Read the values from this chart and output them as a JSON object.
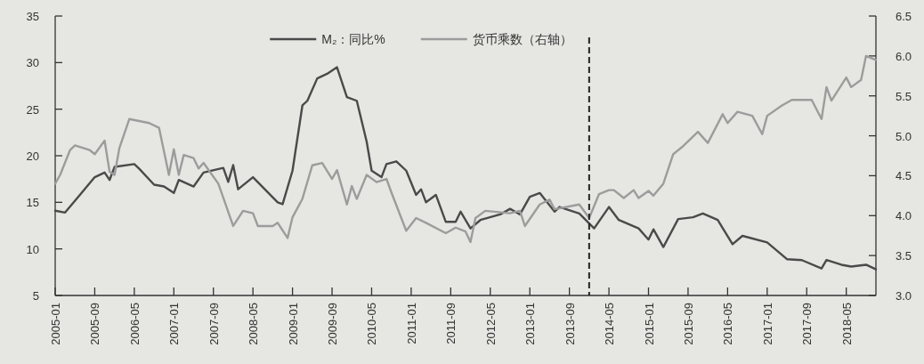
{
  "chart_data": {
    "type": "line",
    "xlim": [
      "2005-01",
      "2018-11"
    ],
    "xticks": [
      "2005-01",
      "2005-09",
      "2006-05",
      "2007-01",
      "2007-09",
      "2008-05",
      "2009-01",
      "2009-09",
      "2010-05",
      "2011-01",
      "2011-09",
      "2012-05",
      "2013-01",
      "2013-09",
      "2014-05",
      "2015-01",
      "2015-09",
      "2016-05",
      "2017-01",
      "2017-09",
      "2018-05"
    ],
    "ylim": [
      5,
      35
    ],
    "yticks": [
      5,
      10,
      15,
      20,
      25,
      30,
      35
    ],
    "y2lim": [
      3,
      6.5
    ],
    "y2ticks": [
      {
        "value": 3,
        "label": "3.0"
      },
      3.5,
      {
        "value": 4,
        "label": "4.0"
      },
      4.5,
      {
        "value": 5,
        "label": "5.0"
      },
      5.5,
      {
        "value": 6,
        "label": "6.0"
      },
      6.5
    ],
    "legend": "top",
    "grid": false,
    "ref_lines": [
      {
        "axis": "x",
        "value": "2014-01",
        "color": "#222222",
        "line_style": "dashed"
      }
    ],
    "series": [
      {
        "name": "M₂：同比%",
        "color": "#4a4a4a",
        "x": [
          "2005-01",
          "2005-03",
          "2005-06",
          "2005-09",
          "2005-11",
          "2005-12",
          "2006-01",
          "2006-05",
          "2006-06",
          "2006-09",
          "2006-11",
          "2007-01",
          "2007-02",
          "2007-05",
          "2007-07",
          "2007-11",
          "2007-12",
          "2008-01",
          "2008-02",
          "2008-05",
          "2008-10",
          "2008-11",
          "2009-01",
          "2009-03",
          "2009-04",
          "2009-06",
          "2009-08",
          "2009-10",
          "2009-12",
          "2010-02",
          "2010-04",
          "2010-05",
          "2010-07",
          "2010-08",
          "2010-10",
          "2010-12",
          "2011-02",
          "2011-03",
          "2011-04",
          "2011-06",
          "2011-08",
          "2011-10",
          "2011-11",
          "2012-01",
          "2012-03",
          "2012-07",
          "2012-09",
          "2012-11",
          "2013-01",
          "2013-03",
          "2013-06",
          "2013-07",
          "2013-11",
          "2014-02",
          "2014-05",
          "2014-07",
          "2014-11",
          "2015-01",
          "2015-02",
          "2015-04",
          "2015-07",
          "2015-10",
          "2015-12",
          "2016-03",
          "2016-06",
          "2016-08",
          "2017-01",
          "2017-05",
          "2017-08",
          "2017-12",
          "2018-01",
          "2018-04",
          "2018-06",
          "2018-09",
          "2018-11"
        ],
        "values": [
          14.1,
          13.9,
          15.8,
          17.7,
          18.2,
          17.4,
          18.8,
          19.1,
          18.6,
          16.9,
          16.7,
          16.0,
          17.4,
          16.7,
          18.2,
          18.7,
          17.2,
          19.0,
          16.4,
          17.7,
          15.0,
          14.8,
          18.4,
          25.4,
          25.9,
          28.3,
          28.8,
          29.5,
          26.3,
          25.9,
          21.5,
          18.4,
          17.7,
          19.1,
          19.4,
          18.4,
          15.8,
          16.4,
          15.0,
          15.8,
          12.9,
          12.9,
          14.0,
          12.2,
          13.1,
          13.7,
          14.3,
          13.7,
          15.6,
          16.0,
          14.0,
          14.5,
          13.8,
          12.2,
          14.5,
          13.1,
          12.2,
          11.0,
          12.1,
          10.2,
          13.2,
          13.4,
          13.8,
          13.1,
          10.5,
          11.4,
          10.7,
          8.9,
          8.8,
          7.9,
          8.8,
          8.3,
          8.1,
          8.3,
          7.8
        ]
      },
      {
        "name": "货币乘数（右轴）",
        "color": "#9c9c9c",
        "axis": "y2",
        "x": [
          "2005-01",
          "2005-02",
          "2005-04",
          "2005-05",
          "2005-08",
          "2005-09",
          "2005-11",
          "2005-12",
          "2006-01",
          "2006-02",
          "2006-04",
          "2006-08",
          "2006-10",
          "2006-12",
          "2007-01",
          "2007-02",
          "2007-03",
          "2007-05",
          "2007-06",
          "2007-07",
          "2007-10",
          "2008-01",
          "2008-03",
          "2008-05",
          "2008-06",
          "2008-09",
          "2008-10",
          "2008-12",
          "2009-01",
          "2009-03",
          "2009-05",
          "2009-07",
          "2009-09",
          "2009-10",
          "2009-12",
          "2010-01",
          "2010-02",
          "2010-04",
          "2010-06",
          "2010-08",
          "2010-09",
          "2010-12",
          "2011-02",
          "2011-04",
          "2011-08",
          "2011-10",
          "2011-12",
          "2012-01",
          "2012-02",
          "2012-04",
          "2012-09",
          "2012-11",
          "2012-12",
          "2013-03",
          "2013-05",
          "2013-06",
          "2013-11",
          "2014-01",
          "2014-03",
          "2014-05",
          "2014-06",
          "2014-08",
          "2014-10",
          "2014-11",
          "2015-01",
          "2015-02",
          "2015-04",
          "2015-06",
          "2015-08",
          "2015-11",
          "2016-01",
          "2016-04",
          "2016-05",
          "2016-07",
          "2016-10",
          "2016-12",
          "2017-01",
          "2017-04",
          "2017-06",
          "2017-10",
          "2017-12",
          "2018-01",
          "2018-02",
          "2018-05",
          "2018-06",
          "2018-08",
          "2018-09",
          "2018-11"
        ],
        "values": [
          4.4,
          4.51,
          4.82,
          4.88,
          4.82,
          4.77,
          4.94,
          4.55,
          4.51,
          4.85,
          5.21,
          5.16,
          5.1,
          4.51,
          4.83,
          4.51,
          4.76,
          4.72,
          4.59,
          4.66,
          4.4,
          3.87,
          4.06,
          4.03,
          3.87,
          3.87,
          3.91,
          3.72,
          3.98,
          4.21,
          4.63,
          4.66,
          4.46,
          4.57,
          4.14,
          4.37,
          4.21,
          4.51,
          4.42,
          4.46,
          4.29,
          3.81,
          3.97,
          3.91,
          3.78,
          3.85,
          3.8,
          3.67,
          3.97,
          4.06,
          4.03,
          4.06,
          3.87,
          4.14,
          4.2,
          4.08,
          4.14,
          3.97,
          4.27,
          4.32,
          4.32,
          4.22,
          4.32,
          4.22,
          4.31,
          4.25,
          4.4,
          4.77,
          4.87,
          5.05,
          4.91,
          5.27,
          5.16,
          5.3,
          5.25,
          5.02,
          5.25,
          5.38,
          5.45,
          5.45,
          5.21,
          5.61,
          5.44,
          5.73,
          5.61,
          5.7,
          6.0,
          5.95
        ]
      }
    ]
  }
}
